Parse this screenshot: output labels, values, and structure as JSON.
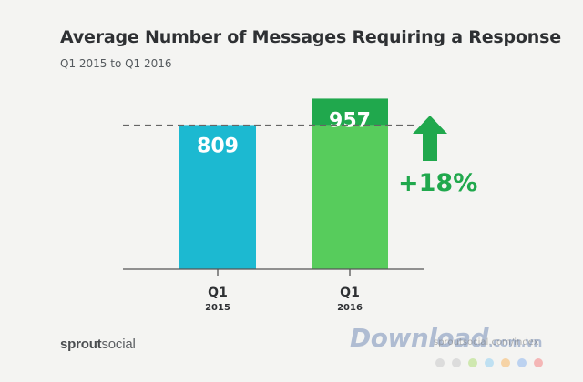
{
  "chart_data": {
    "type": "bar",
    "title": "Average Number of Messages Requiring a Response",
    "subtitle": "Q1 2015 to Q1 2016",
    "categories": [
      {
        "label": "Q1",
        "year": "2015"
      },
      {
        "label": "Q1",
        "year": "2016"
      }
    ],
    "values": [
      809,
      957
    ],
    "bar_colors": [
      "#1cb9d1",
      "#57cc5c"
    ],
    "increase_color": "#20a84d",
    "reference_line_value": 809,
    "change_label": "+18%",
    "ylim": [
      0,
      1000
    ]
  },
  "brand": {
    "part1": "sprout",
    "part2": "social"
  },
  "watermark": {
    "text": "Download",
    "suffix": ".com.vn",
    "url": "sproutsocial.com/index",
    "dot_colors": [
      "#dcdcdc",
      "#dcdcdc",
      "#cfe8b0",
      "#bfe0f2",
      "#f6d3a6",
      "#bcd2f0",
      "#f4b6b6"
    ]
  }
}
